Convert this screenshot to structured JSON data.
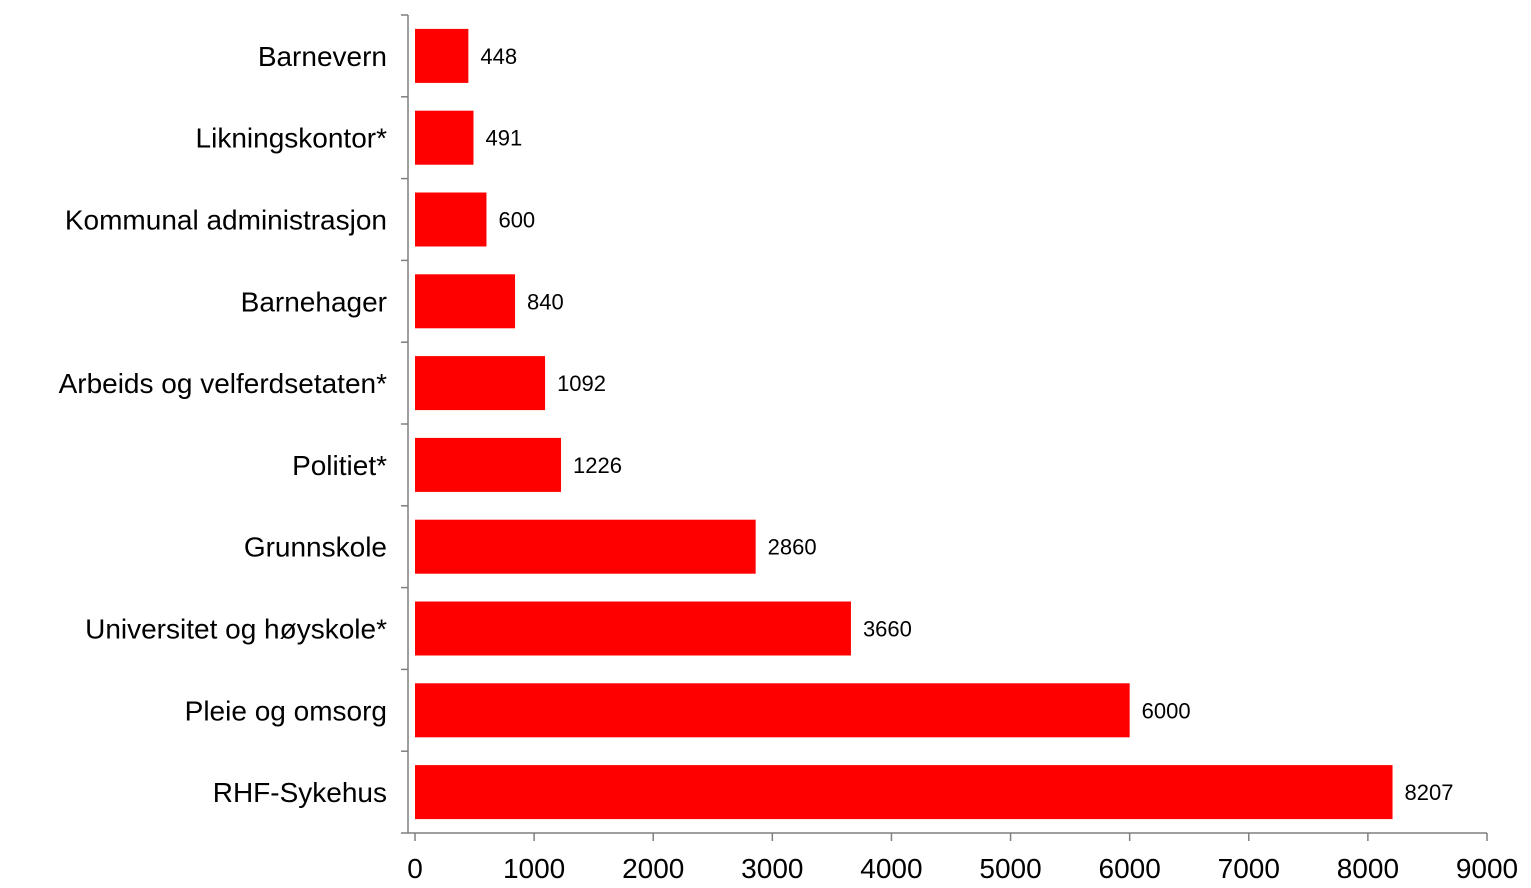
{
  "chart_data": {
    "type": "bar",
    "orientation": "horizontal",
    "categories": [
      "Barnevern",
      "Likningskontor*",
      "Kommunal administrasjon",
      "Barnehager",
      "Arbeids og velferdsetaten*",
      "Politiet*",
      "Grunnskole",
      "Universitet og høyskole*",
      "Pleie og omsorg",
      "RHF-Sykehus"
    ],
    "values": [
      448,
      491,
      600,
      840,
      1092,
      1226,
      2860,
      3660,
      6000,
      8207
    ],
    "xlim": [
      0,
      9000
    ],
    "xticks": [
      0,
      1000,
      2000,
      3000,
      4000,
      5000,
      6000,
      7000,
      8000,
      9000
    ],
    "grid": false,
    "bar_color": "#ff0000",
    "data_labels": true
  }
}
